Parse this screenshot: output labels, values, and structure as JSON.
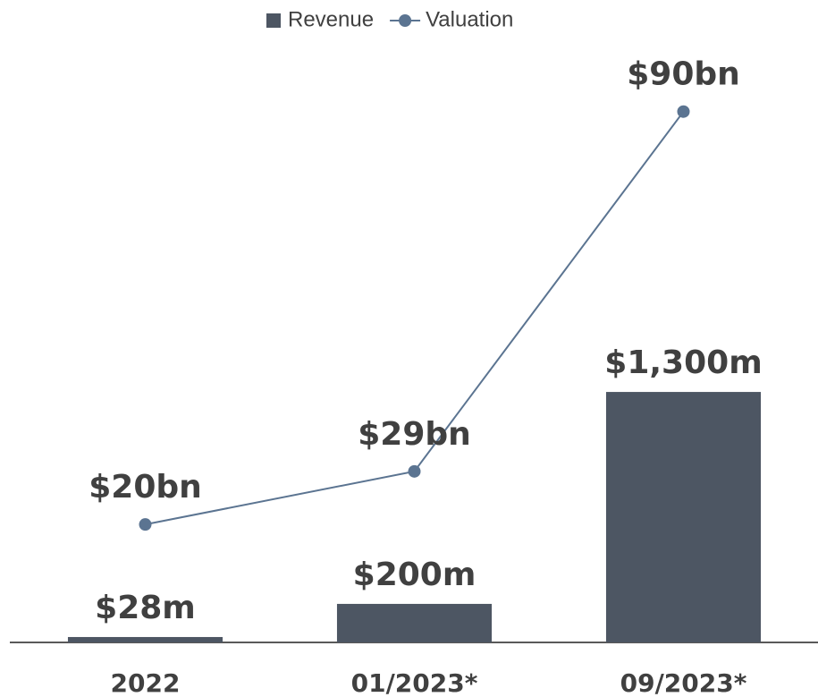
{
  "chart_data": {
    "type": "bar",
    "categories": [
      "2022",
      "01/2023*",
      "09/2023*"
    ],
    "series": [
      {
        "name": "Revenue",
        "type": "bar",
        "color": "#4d5663",
        "values": [
          28,
          200,
          1300
        ],
        "value_labels": [
          "$28m",
          "$200m",
          "$1,300m"
        ]
      },
      {
        "name": "Valuation",
        "type": "line",
        "axis": "y2",
        "color": "#5b7491",
        "values": [
          20,
          29,
          90
        ],
        "value_labels": [
          "$20bn",
          "$29bn",
          "$90bn"
        ]
      }
    ],
    "ylim": [
      0,
      3000
    ],
    "y2lim": [
      0,
      98
    ],
    "legend": "top"
  }
}
